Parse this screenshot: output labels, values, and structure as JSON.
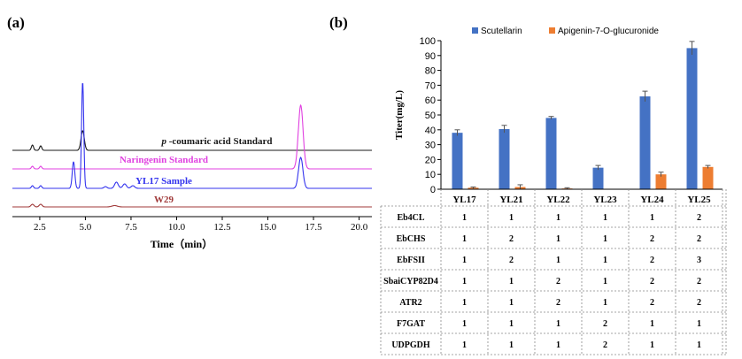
{
  "panel_a": {
    "label": "(a)",
    "xlabel": "Time（min）",
    "x_ticks": [
      "2.5",
      "5.0",
      "7.5",
      "10.0",
      "12.5",
      "15.0",
      "17.5",
      "20.0"
    ],
    "x_tick_values": [
      2.5,
      5.0,
      7.5,
      10.0,
      12.5,
      15.0,
      17.5,
      20.0
    ],
    "x_range": [
      1.0,
      20.7
    ],
    "traces": [
      {
        "prefix": "p",
        "name": " -coumaric acid Standard",
        "color": "#1a1a1a",
        "peaks": [
          [
            2.1,
            6,
            0.06
          ],
          [
            2.55,
            5,
            0.06
          ],
          [
            4.85,
            22,
            0.09
          ]
        ]
      },
      {
        "prefix": "",
        "name": "Naringenin Standard",
        "color": "#e040e0",
        "peaks": [
          [
            2.1,
            3,
            0.06
          ],
          [
            2.55,
            3,
            0.06
          ],
          [
            16.8,
            72,
            0.13
          ]
        ]
      },
      {
        "prefix": "",
        "name": "YL17 Sample",
        "color": "#3333ee",
        "peaks": [
          [
            2.1,
            3,
            0.06
          ],
          [
            2.55,
            3,
            0.06
          ],
          [
            4.35,
            30,
            0.07
          ],
          [
            4.85,
            120,
            0.06
          ],
          [
            6.1,
            2,
            0.08
          ],
          [
            6.7,
            7,
            0.1
          ],
          [
            7.15,
            5,
            0.1
          ],
          [
            7.6,
            3,
            0.1
          ],
          [
            16.8,
            35,
            0.12
          ]
        ]
      },
      {
        "prefix": "",
        "name": "W29",
        "color": "#a03a3a",
        "peaks": [
          [
            2.1,
            3,
            0.08
          ],
          [
            2.55,
            3,
            0.08
          ],
          [
            6.6,
            1.5,
            0.15
          ]
        ]
      }
    ]
  },
  "chart_data": {
    "type": "bar",
    "label": "(b)",
    "title": "",
    "xlabel": "",
    "ylabel": "Titer(mg/L)",
    "ylim": [
      0,
      100
    ],
    "y_ticks": [
      0,
      10,
      20,
      30,
      40,
      50,
      60,
      70,
      80,
      90,
      100
    ],
    "categories": [
      "YL17",
      "YL21",
      "YL22",
      "YL23",
      "YL24",
      "YL25"
    ],
    "series": [
      {
        "name": "Scutellarin",
        "color": "#4472c4",
        "values": [
          38,
          40.5,
          48,
          14.5,
          62.5,
          95
        ],
        "errors": [
          2,
          2.5,
          1,
          1.5,
          3.5,
          4.5
        ]
      },
      {
        "name": "Apigenin-7-O-glucuronide",
        "color": "#ed7d31",
        "values": [
          1,
          1.5,
          0.5,
          0,
          10,
          15
        ],
        "errors": [
          0.5,
          1.5,
          0.5,
          0,
          1.5,
          1
        ]
      }
    ],
    "legend": "top",
    "grid": false,
    "table": {
      "row_labels": [
        "Eb4CL",
        "EbCHS",
        "EbFSII",
        "SbaiCYP82D4",
        "ATR2",
        "F7GAT",
        "UDPGDH"
      ],
      "rows": [
        [
          "1",
          "1",
          "1",
          "1",
          "1",
          "2"
        ],
        [
          "1",
          "2",
          "1",
          "1",
          "2",
          "2"
        ],
        [
          "1",
          "2",
          "1",
          "1",
          "2",
          "3"
        ],
        [
          "1",
          "1",
          "2",
          "1",
          "2",
          "2"
        ],
        [
          "1",
          "1",
          "2",
          "1",
          "2",
          "2"
        ],
        [
          "1",
          "1",
          "1",
          "2",
          "1",
          "1"
        ],
        [
          "1",
          "1",
          "1",
          "2",
          "1",
          "1"
        ]
      ]
    }
  }
}
